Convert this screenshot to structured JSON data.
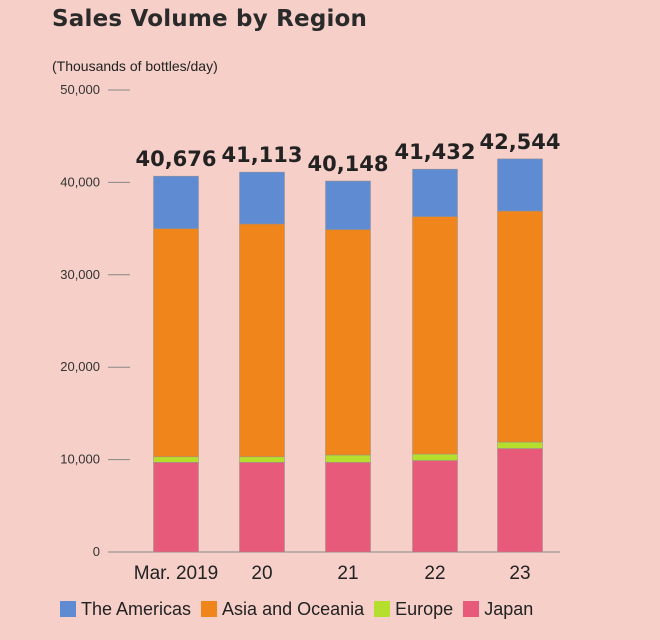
{
  "chart_data": {
    "type": "bar",
    "stacked": true,
    "title": "Sales Volume by Region",
    "ylabel": "(Thousands of bottles/day)",
    "xlabel": "",
    "ylim": [
      0,
      50000
    ],
    "yticks": [
      0,
      10000,
      20000,
      30000,
      40000,
      50000
    ],
    "ytick_labels": [
      "0",
      "10,000",
      "20,000",
      "30,000",
      "40,000",
      "50,000"
    ],
    "categories": [
      "Mar. 2019",
      "20",
      "21",
      "22",
      "23"
    ],
    "totals": [
      40676,
      41113,
      40148,
      41432,
      42544
    ],
    "total_labels": [
      "40,676",
      "41,113",
      "40,148",
      "41,432",
      "42,544"
    ],
    "series": [
      {
        "name": "Japan",
        "color": "#e85a79",
        "values": [
          9700,
          9700,
          9700,
          9900,
          11200
        ]
      },
      {
        "name": "Europe",
        "color": "#b5df2c",
        "values": [
          600,
          600,
          800,
          700,
          700
        ]
      },
      {
        "name": "Asia and Oceania",
        "color": "#f0851c",
        "values": [
          24700,
          25200,
          24400,
          25700,
          25000
        ]
      },
      {
        "name": "The Americas",
        "color": "#5f8bd3",
        "values": [
          5676,
          5613,
          5248,
          5132,
          5644
        ]
      }
    ],
    "legend": [
      "The Americas",
      "Asia and Oceania",
      "Europe",
      "Japan"
    ],
    "legend_colors": [
      "#5f8bd3",
      "#f0851c",
      "#b5df2c",
      "#e85a79"
    ],
    "legend_position": "bottom"
  }
}
